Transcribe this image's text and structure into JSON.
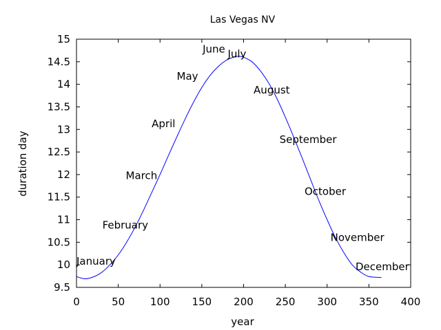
{
  "chart_data": {
    "type": "line",
    "title": "Las Vegas NV",
    "xlabel": "year",
    "ylabel": "duration day",
    "xlim": [
      0,
      400
    ],
    "ylim": [
      9.5,
      15
    ],
    "xticks": [
      0,
      50,
      100,
      150,
      200,
      250,
      300,
      350,
      400
    ],
    "yticks": [
      9.5,
      10,
      10.5,
      11,
      11.5,
      12,
      12.5,
      13,
      13.5,
      14,
      14.5,
      15
    ],
    "ytick_labels": [
      "9.5",
      "10",
      "10.5",
      "11",
      "11.5",
      "12",
      "12.5",
      "13",
      "13.5",
      "14",
      "14.5",
      "15"
    ],
    "grid": false,
    "line_color": "#0000ff",
    "series": [
      {
        "x": [
          0,
          10,
          20,
          30,
          40,
          50,
          60,
          70,
          80,
          90,
          100,
          110,
          120,
          130,
          140,
          150,
          160,
          170,
          180,
          190,
          195,
          200,
          210,
          220,
          230,
          240,
          250,
          260,
          270,
          280,
          290,
          300,
          310,
          320,
          330,
          340,
          350,
          365
        ],
        "y": [
          9.74,
          9.69,
          9.73,
          9.83,
          10.0,
          10.22,
          10.5,
          10.83,
          11.2,
          11.6,
          12.0,
          12.42,
          12.83,
          13.23,
          13.6,
          13.93,
          14.2,
          14.4,
          14.54,
          14.61,
          14.62,
          14.6,
          14.5,
          14.3,
          14.03,
          13.68,
          13.27,
          12.83,
          12.37,
          11.9,
          11.43,
          11.0,
          10.6,
          10.27,
          10.0,
          9.84,
          9.74,
          9.72
        ]
      }
    ],
    "annotations": [
      {
        "text": "January",
        "x": 0,
        "y": 10
      },
      {
        "text": "February",
        "x": 31,
        "y": 10.8
      },
      {
        "text": "March",
        "x": 59,
        "y": 11.9
      },
      {
        "text": "April",
        "x": 90,
        "y": 13.05
      },
      {
        "text": "May",
        "x": 120,
        "y": 14.1
      },
      {
        "text": "June",
        "x": 151,
        "y": 14.7
      },
      {
        "text": "July",
        "x": 181,
        "y": 14.6
      },
      {
        "text": "August",
        "x": 212,
        "y": 13.8
      },
      {
        "text": "September",
        "x": 243,
        "y": 12.7
      },
      {
        "text": "October",
        "x": 273,
        "y": 11.55
      },
      {
        "text": "November",
        "x": 304,
        "y": 10.53
      },
      {
        "text": "December",
        "x": 334,
        "y": 9.88
      }
    ]
  }
}
